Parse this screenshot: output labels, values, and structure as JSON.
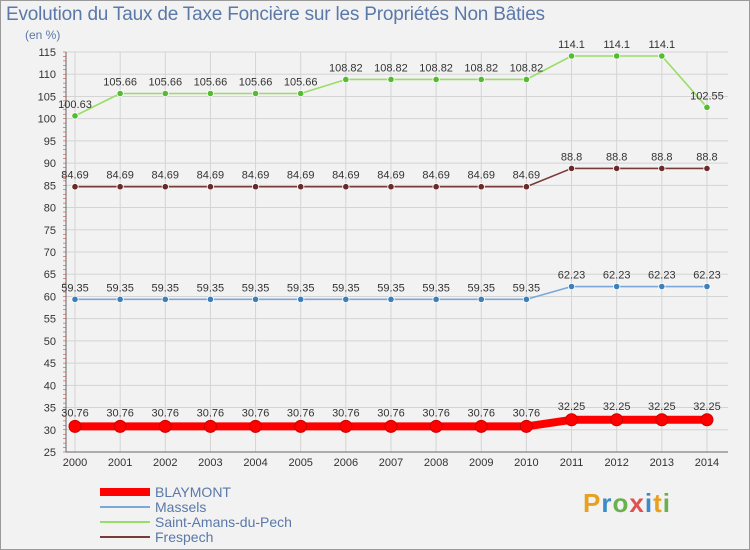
{
  "page": {
    "title": "Evolution du Taux de Taxe Foncière sur les Propriétés Non Bâties",
    "unit": "(en %)",
    "logo": "Proxiti"
  },
  "chart_data": {
    "type": "line",
    "title": "Evolution du Taux de Taxe Foncière sur les Propriétés Non Bâties",
    "ylabel": "(en %)",
    "xlabel": "",
    "ylim": [
      25,
      115
    ],
    "yticks": [
      25,
      30,
      35,
      40,
      45,
      50,
      55,
      60,
      65,
      70,
      75,
      80,
      85,
      90,
      95,
      100,
      105,
      110,
      115
    ],
    "grid": true,
    "categories": [
      "2000",
      "2001",
      "2002",
      "2003",
      "2004",
      "2005",
      "2006",
      "2007",
      "2008",
      "2009",
      "2010",
      "2011",
      "2012",
      "2013",
      "2014"
    ],
    "series": [
      {
        "name": "BLAYMONT",
        "color": "#ff0000",
        "marker_color": "#e00000",
        "bold": true,
        "values": [
          30.76,
          30.76,
          30.76,
          30.76,
          30.76,
          30.76,
          30.76,
          30.76,
          30.76,
          30.76,
          30.76,
          32.25,
          32.25,
          32.25,
          32.25
        ],
        "labels": [
          "30.76",
          "30.76",
          "30.76",
          "30.76",
          "30.76",
          "30.76",
          "30.76",
          "30.76",
          "30.76",
          "30.76",
          "30.76",
          "32.25",
          "32.25",
          "32.25",
          "32.25"
        ]
      },
      {
        "name": "Massels",
        "color": "#7aa8d8",
        "marker_color": "#3d7fb8",
        "bold": false,
        "values": [
          59.35,
          59.35,
          59.35,
          59.35,
          59.35,
          59.35,
          59.35,
          59.35,
          59.35,
          59.35,
          59.35,
          62.23,
          62.23,
          62.23,
          62.23
        ],
        "labels": [
          "59.35",
          "59.35",
          "59.35",
          "59.35",
          "59.35",
          "59.35",
          "59.35",
          "59.35",
          "59.35",
          "59.35",
          "59.35",
          "62.23",
          "62.23",
          "62.23",
          "62.23"
        ]
      },
      {
        "name": "Saint-Amans-du-Pech",
        "color": "#99dd66",
        "marker_color": "#55bb33",
        "bold": false,
        "values": [
          100.63,
          105.66,
          105.66,
          105.66,
          105.66,
          105.66,
          108.82,
          108.82,
          108.82,
          108.82,
          108.82,
          114.1,
          114.1,
          114.1,
          102.55
        ],
        "labels": [
          "100.63",
          "105.66",
          "105.66",
          "105.66",
          "105.66",
          "105.66",
          "108.82",
          "108.82",
          "108.82",
          "108.82",
          "108.82",
          "114.1",
          "114.1",
          "114.1",
          "102.55"
        ]
      },
      {
        "name": "Frespech",
        "color": "#7a3a3a",
        "marker_color": "#6a2a2a",
        "bold": false,
        "values": [
          84.69,
          84.69,
          84.69,
          84.69,
          84.69,
          84.69,
          84.69,
          84.69,
          84.69,
          84.69,
          84.69,
          88.8,
          88.8,
          88.8,
          88.8
        ],
        "labels": [
          "84.69",
          "84.69",
          "84.69",
          "84.69",
          "84.69",
          "84.69",
          "84.69",
          "84.69",
          "84.69",
          "84.69",
          "84.69",
          "88.8",
          "88.8",
          "88.8",
          "88.8"
        ]
      }
    ],
    "legend": [
      "BLAYMONT",
      "Massels",
      "Saint-Amans-du-Pech",
      "Frespech"
    ],
    "legend_position": "bottom-left"
  }
}
